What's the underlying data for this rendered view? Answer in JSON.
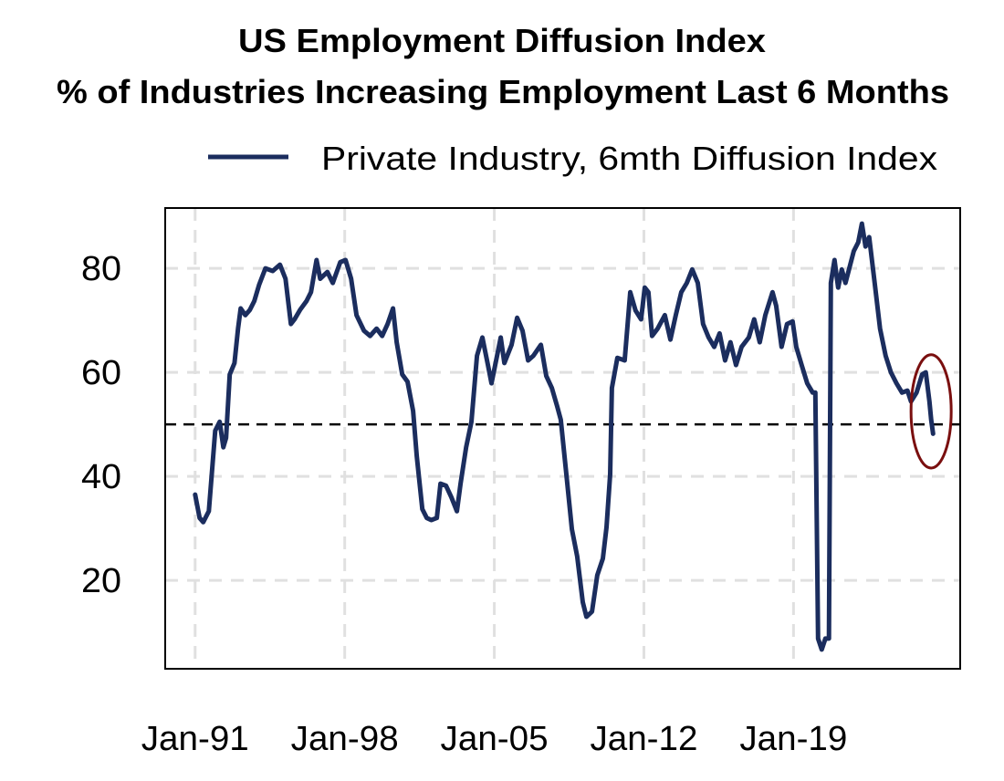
{
  "chart_data": {
    "type": "line",
    "title": "US Employment Diffusion Index",
    "subtitle": "% of Industries Increasing Employment Last 6 Months",
    "xlabel": "",
    "ylabel": "",
    "xlim": [
      1989.6,
      2026.8
    ],
    "ylim": [
      3,
      91.6
    ],
    "grid": true,
    "legend_position": "top",
    "x_ticks": [
      {
        "value": 1991,
        "label": "Jan-91"
      },
      {
        "value": 1998,
        "label": "Jan-98"
      },
      {
        "value": 2005,
        "label": "Jan-05"
      },
      {
        "value": 2012,
        "label": "Jan-12"
      },
      {
        "value": 2019,
        "label": "Jan-19"
      }
    ],
    "y_ticks": [
      {
        "value": 20,
        "label": "20"
      },
      {
        "value": 40,
        "label": "40"
      },
      {
        "value": 60,
        "label": "60"
      },
      {
        "value": 80,
        "label": "80"
      }
    ],
    "reference_line": {
      "value": 50,
      "style": "dashed",
      "color": "#000000"
    },
    "highlight": {
      "shape": "ellipse",
      "center": [
        2025.44,
        52.5
      ],
      "radius_x_years": 0.94,
      "radius_y": 10.9,
      "color": "#7a0f0f"
    },
    "series": [
      {
        "name": "Private Industry, 6mth Diffusion Index",
        "color": "#1b2d5e",
        "points": [
          [
            1991.0,
            36.5
          ],
          [
            1991.21,
            32
          ],
          [
            1991.38,
            31.2
          ],
          [
            1991.64,
            33.3
          ],
          [
            1991.94,
            48.8
          ],
          [
            1992.15,
            50.5
          ],
          [
            1992.32,
            45.6
          ],
          [
            1992.45,
            47.4
          ],
          [
            1992.62,
            59.6
          ],
          [
            1992.84,
            61.8
          ],
          [
            1993.01,
            68.4
          ],
          [
            1993.13,
            72.3
          ],
          [
            1993.35,
            71
          ],
          [
            1993.56,
            72
          ],
          [
            1993.77,
            73.7
          ],
          [
            1993.99,
            76.8
          ],
          [
            1994.29,
            80
          ],
          [
            1994.63,
            79.5
          ],
          [
            1994.97,
            80.7
          ],
          [
            1995.23,
            78
          ],
          [
            1995.48,
            69.3
          ],
          [
            1995.65,
            70.2
          ],
          [
            1995.91,
            72
          ],
          [
            1996.21,
            73.7
          ],
          [
            1996.42,
            75.4
          ],
          [
            1996.68,
            81.6
          ],
          [
            1996.85,
            78
          ],
          [
            1997.19,
            79.3
          ],
          [
            1997.44,
            77.2
          ],
          [
            1997.79,
            81.2
          ],
          [
            1998.04,
            81.6
          ],
          [
            1998.3,
            78
          ],
          [
            1998.55,
            71
          ],
          [
            1998.9,
            68
          ],
          [
            1999.19,
            67
          ],
          [
            1999.49,
            68.4
          ],
          [
            1999.75,
            67
          ],
          [
            2000.01,
            69.3
          ],
          [
            2000.26,
            72.3
          ],
          [
            2000.43,
            65.8
          ],
          [
            2000.69,
            59.6
          ],
          [
            2000.94,
            58.2
          ],
          [
            2001.2,
            52.6
          ],
          [
            2001.37,
            43.9
          ],
          [
            2001.63,
            33.7
          ],
          [
            2001.84,
            32
          ],
          [
            2002.05,
            31.6
          ],
          [
            2002.31,
            32
          ],
          [
            2002.48,
            38.6
          ],
          [
            2002.74,
            38.2
          ],
          [
            2002.99,
            36
          ],
          [
            2003.25,
            33.3
          ],
          [
            2003.42,
            38.6
          ],
          [
            2003.68,
            45.6
          ],
          [
            2003.93,
            50.5
          ],
          [
            2004.19,
            63.2
          ],
          [
            2004.44,
            66.7
          ],
          [
            2004.7,
            61.4
          ],
          [
            2004.87,
            57.9
          ],
          [
            2005.13,
            63.2
          ],
          [
            2005.3,
            66.7
          ],
          [
            2005.47,
            61.8
          ],
          [
            2005.81,
            65.3
          ],
          [
            2006.07,
            70.5
          ],
          [
            2006.32,
            68
          ],
          [
            2006.58,
            62.3
          ],
          [
            2006.83,
            63.2
          ],
          [
            2007.18,
            65.3
          ],
          [
            2007.43,
            59.3
          ],
          [
            2007.69,
            57
          ],
          [
            2007.94,
            53.5
          ],
          [
            2008.11,
            50.9
          ],
          [
            2008.37,
            40.4
          ],
          [
            2008.63,
            29.8
          ],
          [
            2008.88,
            24.6
          ],
          [
            2009.14,
            15.8
          ],
          [
            2009.31,
            13
          ],
          [
            2009.57,
            14
          ],
          [
            2009.82,
            21
          ],
          [
            2010.08,
            24.2
          ],
          [
            2010.25,
            30.2
          ],
          [
            2010.42,
            40.4
          ],
          [
            2010.5,
            57
          ],
          [
            2010.76,
            62.8
          ],
          [
            2011.1,
            62.3
          ],
          [
            2011.36,
            75.4
          ],
          [
            2011.61,
            71.9
          ],
          [
            2011.87,
            70.2
          ],
          [
            2012.04,
            76.3
          ],
          [
            2012.21,
            75.4
          ],
          [
            2012.38,
            67
          ],
          [
            2012.64,
            68.4
          ],
          [
            2012.98,
            71
          ],
          [
            2013.24,
            66.3
          ],
          [
            2013.49,
            71
          ],
          [
            2013.75,
            75.4
          ],
          [
            2014.01,
            77.2
          ],
          [
            2014.26,
            79.8
          ],
          [
            2014.52,
            77.2
          ],
          [
            2014.77,
            69.3
          ],
          [
            2015.03,
            66.7
          ],
          [
            2015.29,
            64.9
          ],
          [
            2015.54,
            67.5
          ],
          [
            2015.8,
            62.3
          ],
          [
            2016.05,
            65.8
          ],
          [
            2016.31,
            61.4
          ],
          [
            2016.57,
            64.9
          ],
          [
            2016.91,
            66.7
          ],
          [
            2017.16,
            70.2
          ],
          [
            2017.42,
            65.8
          ],
          [
            2017.68,
            71
          ],
          [
            2018.02,
            75.4
          ],
          [
            2018.19,
            72.8
          ],
          [
            2018.44,
            64.9
          ],
          [
            2018.7,
            69.3
          ],
          [
            2018.96,
            69.8
          ],
          [
            2019.13,
            64.9
          ],
          [
            2019.38,
            61.4
          ],
          [
            2019.64,
            57.9
          ],
          [
            2019.9,
            56.1
          ],
          [
            2020.02,
            56.1
          ],
          [
            2020.15,
            8.8
          ],
          [
            2020.32,
            6.7
          ],
          [
            2020.49,
            8.8
          ],
          [
            2020.66,
            8.8
          ],
          [
            2020.75,
            77.2
          ],
          [
            2020.92,
            81.6
          ],
          [
            2021.09,
            76.3
          ],
          [
            2021.26,
            79.8
          ],
          [
            2021.43,
            77.2
          ],
          [
            2021.6,
            79.8
          ],
          [
            2021.82,
            83.3
          ],
          [
            2022.03,
            85
          ],
          [
            2022.2,
            88.6
          ],
          [
            2022.37,
            84.2
          ],
          [
            2022.54,
            86
          ],
          [
            2022.8,
            77.2
          ],
          [
            2023.05,
            68.4
          ],
          [
            2023.31,
            63.2
          ],
          [
            2023.56,
            60
          ],
          [
            2023.82,
            57.9
          ],
          [
            2024.08,
            56.1
          ],
          [
            2024.33,
            56.5
          ],
          [
            2024.5,
            54.4
          ],
          [
            2024.76,
            56.1
          ],
          [
            2025.02,
            59.6
          ],
          [
            2025.19,
            60
          ],
          [
            2025.36,
            54.4
          ],
          [
            2025.44,
            50.9
          ],
          [
            2025.53,
            48.2
          ]
        ]
      }
    ]
  }
}
